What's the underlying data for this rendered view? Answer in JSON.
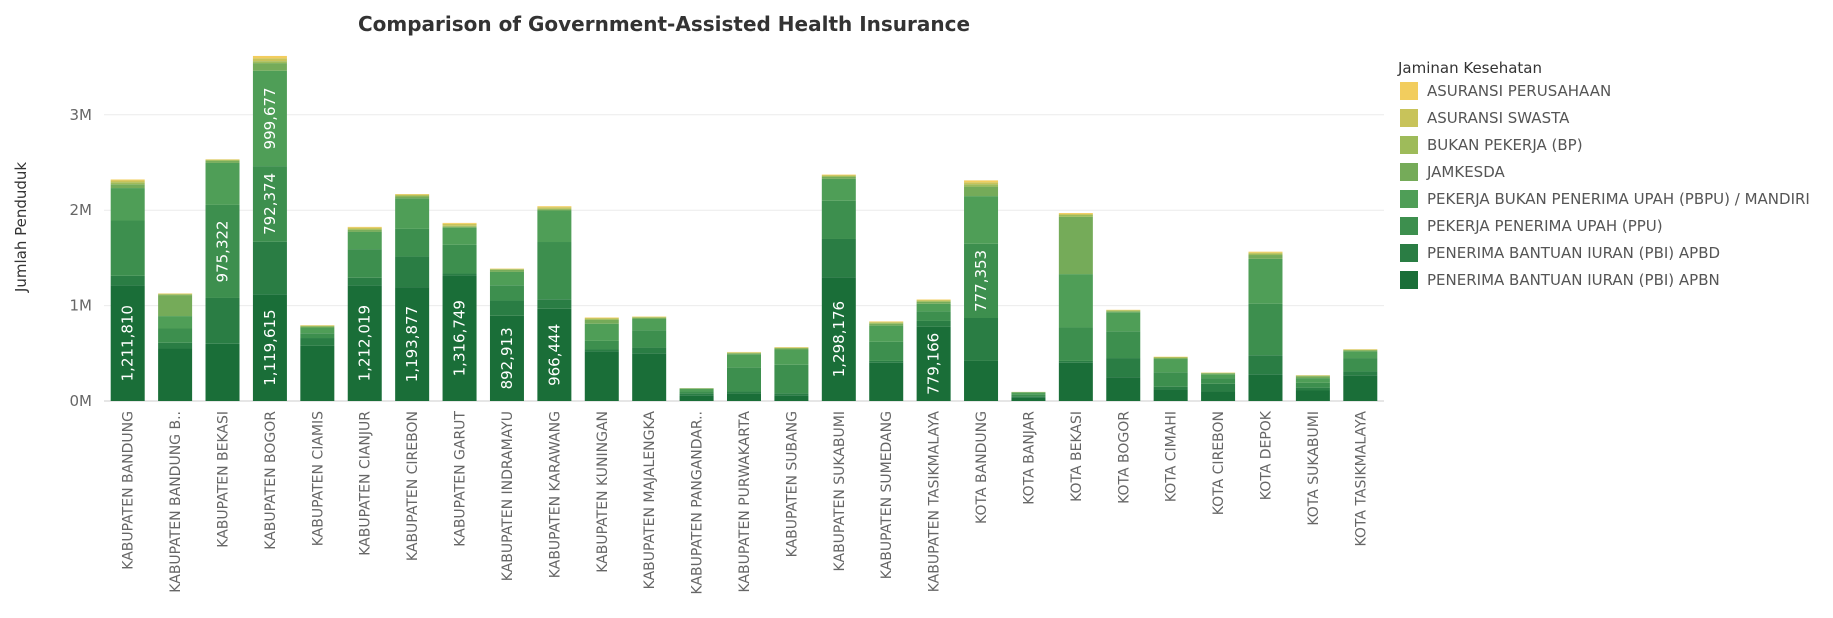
{
  "chart_data": {
    "type": "bar",
    "stacked": true,
    "title": "Comparison of Government-Assisted Health Insurance",
    "ylabel": "Jumlah Penduduk",
    "xlabel": "",
    "ylim": [
      0,
      3700000
    ],
    "yticks": [
      0,
      1000000,
      2000000,
      3000000
    ],
    "ytick_labels": [
      "0M",
      "1M",
      "2M",
      "3M"
    ],
    "grid": true,
    "legend_position": "right",
    "legend_title": "Jaminan Kesehatan",
    "categories": [
      "KABUPATEN BANDUNG",
      "KABUPATEN BANDUNG B..",
      "KABUPATEN BEKASI",
      "KABUPATEN BOGOR",
      "KABUPATEN CIAMIS",
      "KABUPATEN CIANJUR",
      "KABUPATEN CIREBON",
      "KABUPATEN GARUT",
      "KABUPATEN INDRAMAYU",
      "KABUPATEN KARAWANG",
      "KABUPATEN KUNINGAN",
      "KABUPATEN MAJALENGKA",
      "KABUPATEN PANGANDAR..",
      "KABUPATEN PURWAKARTA",
      "KABUPATEN SUBANG",
      "KABUPATEN SUKABUMI",
      "KABUPATEN SUMEDANG",
      "KABUPATEN TASIKMALAYA",
      "KOTA BANDUNG",
      "KOTA BANJAR",
      "KOTA BEKASI",
      "KOTA BOGOR",
      "KOTA CIMAHI",
      "KOTA CIREBON",
      "KOTA DEPOK",
      "KOTA SUKABUMI",
      "KOTA TASIKMALAYA"
    ],
    "series": [
      {
        "name": "PENERIMA BANTUAN IURAN (PBI) APBN",
        "color": "#1a6e38",
        "values": [
          1211810,
          550000,
          600000,
          1119615,
          580000,
          1212019,
          1193877,
          1316749,
          892913,
          966444,
          520000,
          500000,
          60000,
          80000,
          60000,
          1298176,
          400000,
          779166,
          420000,
          40000,
          400000,
          250000,
          120000,
          100000,
          280000,
          110000,
          270000
        ]
      },
      {
        "name": "PENERIMA BANTUAN IURAN (PBI) APBD",
        "color": "#2a7d44",
        "values": [
          100000,
          60000,
          480000,
          550000,
          80000,
          80000,
          320000,
          20000,
          160000,
          100000,
          20000,
          60000,
          20000,
          20000,
          20000,
          400000,
          20000,
          60000,
          450000,
          10000,
          20000,
          200000,
          30000,
          80000,
          200000,
          30000,
          40000
        ]
      },
      {
        "name": "PEKERJA PENERIMA UPAH (PPU)",
        "color": "#3d8f4e",
        "values": [
          580000,
          150000,
          975322,
          792374,
          50000,
          300000,
          290000,
          300000,
          160000,
          600000,
          90000,
          180000,
          20000,
          250000,
          300000,
          400000,
          200000,
          100000,
          777353,
          20000,
          350000,
          280000,
          150000,
          60000,
          540000,
          50000,
          140000
        ]
      },
      {
        "name": "PEKERJA BUKAN PENERIMA UPAH (PBPU) / MANDIRI",
        "color": "#4f9e57",
        "values": [
          340000,
          130000,
          440000,
          999677,
          60000,
          180000,
          320000,
          180000,
          140000,
          330000,
          180000,
          120000,
          30000,
          140000,
          160000,
          230000,
          170000,
          80000,
          500000,
          20000,
          560000,
          200000,
          140000,
          40000,
          470000,
          50000,
          70000
        ]
      },
      {
        "name": "JAMKESDA",
        "color": "#75ab59",
        "values": [
          40000,
          220000,
          20000,
          80000,
          10000,
          20000,
          20000,
          10000,
          20000,
          10000,
          40000,
          10000,
          2000,
          10000,
          10000,
          20000,
          20000,
          20000,
          100000,
          2000,
          600000,
          10000,
          10000,
          10000,
          40000,
          20000,
          10000
        ]
      },
      {
        "name": "BUKAN PEKERJA (BP)",
        "color": "#9ebb5a",
        "values": [
          20000,
          10000,
          10000,
          20000,
          8000,
          10000,
          10000,
          10000,
          8000,
          10000,
          10000,
          8000,
          2000,
          6000,
          6000,
          10000,
          10000,
          10000,
          25000,
          2000,
          20000,
          8000,
          6000,
          4000,
          15000,
          6000,
          6000
        ]
      },
      {
        "name": "ASURANSI SWASTA",
        "color": "#c8c35a",
        "values": [
          20000,
          5000,
          5000,
          30000,
          4000,
          15000,
          10000,
          20000,
          5000,
          15000,
          10000,
          5000,
          1000,
          5000,
          5000,
          10000,
          10000,
          10000,
          20000,
          1000,
          10000,
          5000,
          5000,
          3000,
          10000,
          3000,
          4000
        ]
      },
      {
        "name": "ASURANSI PERUSAHAAN",
        "color": "#f2cd5e",
        "values": [
          10000,
          3000,
          3000,
          25000,
          3000,
          8000,
          5000,
          10000,
          3000,
          10000,
          5000,
          3000,
          500,
          3000,
          3000,
          5000,
          5000,
          5000,
          20000,
          500,
          10000,
          3000,
          3000,
          2000,
          10000,
          2000,
          3000
        ]
      }
    ],
    "data_labels": [
      {
        "category": "KABUPATEN BANDUNG",
        "series": "PENERIMA BANTUAN IURAN (PBI) APBN",
        "text": "1,211,810"
      },
      {
        "category": "KABUPATEN BEKASI",
        "series": "PEKERJA PENERIMA UPAH (PPU)",
        "text": "975,322"
      },
      {
        "category": "KABUPATEN BOGOR",
        "series": "PENERIMA BANTUAN IURAN (PBI) APBN",
        "text": "1,119,615"
      },
      {
        "category": "KABUPATEN BOGOR",
        "series": "PEKERJA PENERIMA UPAH (PPU)",
        "text": "792,374"
      },
      {
        "category": "KABUPATEN BOGOR",
        "series": "PEKERJA BUKAN PENERIMA UPAH (PBPU) / MANDIRI",
        "text": "999,677"
      },
      {
        "category": "KABUPATEN CIANJUR",
        "series": "PENERIMA BANTUAN IURAN (PBI) APBN",
        "text": "1,212,019"
      },
      {
        "category": "KABUPATEN CIREBON",
        "series": "PENERIMA BANTUAN IURAN (PBI) APBN",
        "text": "1,193,877"
      },
      {
        "category": "KABUPATEN GARUT",
        "series": "PENERIMA BANTUAN IURAN (PBI) APBN",
        "text": "1,316,749"
      },
      {
        "category": "KABUPATEN INDRAMAYU",
        "series": "PENERIMA BANTUAN IURAN (PBI) APBN",
        "text": "892,913"
      },
      {
        "category": "KABUPATEN KARAWANG",
        "series": "PENERIMA BANTUAN IURAN (PBI) APBN",
        "text": "966,444"
      },
      {
        "category": "KABUPATEN SUKABUMI",
        "series": "PENERIMA BANTUAN IURAN (PBI) APBN",
        "text": "1,298,176"
      },
      {
        "category": "KABUPATEN TASIKMALAYA",
        "series": "PENERIMA BANTUAN IURAN (PBI) APBN",
        "text": "779,166"
      },
      {
        "category": "KOTA BANDUNG",
        "series": "PEKERJA PENERIMA UPAH (PPU)",
        "text": "777,353"
      }
    ],
    "legend_order": [
      "ASURANSI PERUSAHAAN",
      "ASURANSI SWASTA",
      "BUKAN PEKERJA (BP)",
      "JAMKESDA",
      "PEKERJA BUKAN PENERIMA UPAH (PBPU) / MANDIRI",
      "PEKERJA PENERIMA UPAH (PPU)",
      "PENERIMA BANTUAN IURAN (PBI) APBD",
      "PENERIMA BANTUAN IURAN (PBI) APBN"
    ]
  }
}
